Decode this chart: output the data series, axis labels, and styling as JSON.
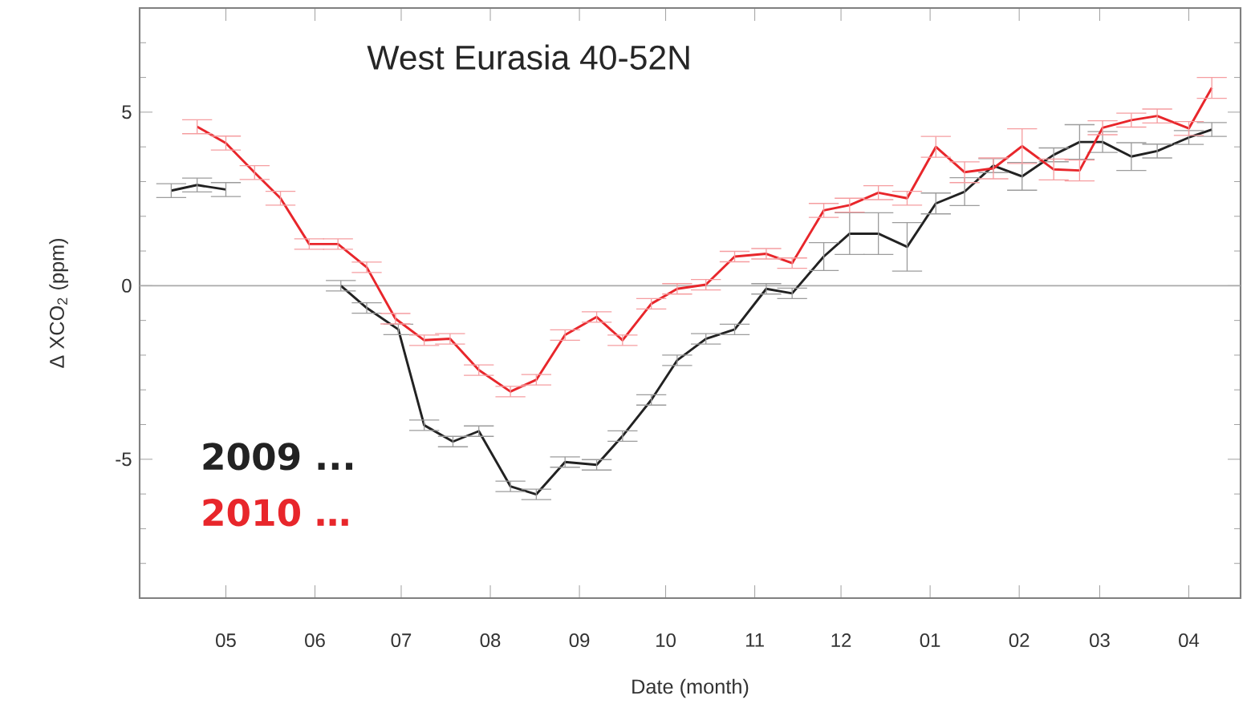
{
  "chart_data": {
    "type": "line",
    "title": "West Eurasia 40-52N",
    "xlabel": "Date (month)",
    "ylabel": "Δ XCO$_{2}$ (ppm)",
    "xlim": [
      "2009-04-01",
      "2010-04-19"
    ],
    "ylim": [
      -9,
      8
    ],
    "xticks": [
      {
        "value": "2009-05-01",
        "label": "05"
      },
      {
        "value": "2009-06-01",
        "label": "06"
      },
      {
        "value": "2009-07-01",
        "label": "07"
      },
      {
        "value": "2009-08-01",
        "label": "08"
      },
      {
        "value": "2009-09-01",
        "label": "09"
      },
      {
        "value": "2009-10-01",
        "label": "10"
      },
      {
        "value": "2009-11-01",
        "label": "11"
      },
      {
        "value": "2009-12-01",
        "label": "12"
      },
      {
        "value": "2010-01-01",
        "label": "01"
      },
      {
        "value": "2010-02-01",
        "label": "02"
      },
      {
        "value": "2010-03-01",
        "label": "03"
      },
      {
        "value": "2010-04-01",
        "label": "04"
      }
    ],
    "yticks": [
      {
        "value": -8,
        "label": null
      },
      {
        "value": -7,
        "label": null
      },
      {
        "value": -6,
        "label": null
      },
      -5,
      {
        "value": -4,
        "label": null
      },
      {
        "value": -3,
        "label": null
      },
      {
        "value": -2,
        "label": null
      },
      {
        "value": -1,
        "label": null
      },
      0,
      {
        "value": 1,
        "label": null
      },
      {
        "value": 2,
        "label": null
      },
      {
        "value": 3,
        "label": null
      },
      {
        "value": 4,
        "label": null
      },
      5,
      {
        "value": 6,
        "label": null
      },
      {
        "value": 7,
        "label": null
      }
    ],
    "ref_lines": [
      {
        "axis": "y",
        "value": 0,
        "color": "#aaaaaa"
      }
    ],
    "legend": "bottom left",
    "grid": false,
    "marker": "none",
    "line_style": "solid",
    "series": [
      {
        "name": "2009 ...",
        "color": "#222222",
        "x": [
          "2009-04-12",
          "2009-04-21",
          "2009-05-01",
          "2009-05-20",
          "2009-06-10",
          "2009-06-19",
          "2009-06-30",
          "2009-07-09",
          "2009-07-19",
          "2009-07-28",
          "2009-08-08",
          "2009-08-17",
          "2009-08-27",
          "2009-09-07",
          "2009-09-16",
          "2009-09-26",
          "2009-10-05",
          "2009-10-15",
          "2009-10-25",
          "2009-11-05",
          "2009-11-14",
          "2009-11-25",
          "2009-12-04",
          "2009-12-14",
          "2009-12-24",
          "2010-01-03",
          "2010-01-13",
          "2010-01-23",
          "2010-02-02",
          "2010-02-13",
          "2010-02-22",
          "2010-03-02",
          "2010-03-12",
          "2010-03-21",
          "2010-04-01",
          "2010-04-09"
        ],
        "values": [
          2.74,
          2.9,
          2.77,
          null,
          0.0,
          -0.64,
          -1.26,
          -4.02,
          -4.49,
          -4.19,
          -5.78,
          -6.01,
          -5.08,
          -5.16,
          -4.33,
          -3.29,
          -2.15,
          -1.53,
          -1.26,
          -0.09,
          -0.22,
          0.84,
          1.5,
          1.5,
          1.12,
          2.37,
          2.71,
          3.46,
          3.15,
          3.77,
          4.14,
          4.14,
          3.72,
          3.88,
          4.27,
          4.5
        ],
        "errors": [
          0.2,
          0.2,
          0.2,
          null,
          0.15,
          0.15,
          0.15,
          0.15,
          0.15,
          0.15,
          0.15,
          0.15,
          0.15,
          0.15,
          0.15,
          0.15,
          0.15,
          0.15,
          0.15,
          0.15,
          0.15,
          0.4,
          0.6,
          0.6,
          0.7,
          0.3,
          0.4,
          0.2,
          0.4,
          0.2,
          0.5,
          0.3,
          0.4,
          0.2,
          0.2,
          0.2
        ]
      },
      {
        "name": "2010 …",
        "color": "#e8262b",
        "x": [
          "2009-04-21",
          "2009-05-01",
          "2009-05-11",
          "2009-05-20",
          "2009-05-30",
          "2009-06-09",
          "2009-06-19",
          "2009-06-29",
          "2009-07-09",
          "2009-07-18",
          "2009-07-28",
          "2009-08-08",
          "2009-08-17",
          "2009-08-27",
          "2009-09-07",
          "2009-09-16",
          "2009-09-26",
          "2009-10-05",
          "2009-10-15",
          "2009-10-25",
          "2009-11-05",
          "2009-11-14",
          "2009-11-25",
          "2009-12-04",
          "2009-12-14",
          "2009-12-24",
          "2010-01-03",
          "2010-01-13",
          "2010-01-23",
          "2010-02-02",
          "2010-02-13",
          "2010-02-22",
          "2010-03-02",
          "2010-03-12",
          "2010-03-21",
          "2010-04-01",
          "2010-04-09"
        ],
        "values": [
          4.58,
          4.11,
          3.26,
          2.52,
          1.2,
          1.2,
          0.53,
          -0.95,
          -1.57,
          -1.53,
          -2.43,
          -3.05,
          -2.71,
          -1.42,
          -0.9,
          -1.57,
          -0.52,
          -0.09,
          0.03,
          0.84,
          0.92,
          0.65,
          2.17,
          2.32,
          2.68,
          2.52,
          4.0,
          3.27,
          3.38,
          4.02,
          3.35,
          3.32,
          4.55,
          4.77,
          4.89,
          4.53,
          5.7
        ],
        "errors": [
          0.2,
          0.2,
          0.2,
          0.2,
          0.15,
          0.15,
          0.15,
          0.15,
          0.15,
          0.15,
          0.15,
          0.15,
          0.15,
          0.15,
          0.15,
          0.15,
          0.15,
          0.15,
          0.15,
          0.15,
          0.15,
          0.15,
          0.2,
          0.2,
          0.2,
          0.2,
          0.3,
          0.3,
          0.3,
          0.5,
          0.3,
          0.3,
          0.2,
          0.2,
          0.2,
          0.2,
          0.3
        ]
      }
    ]
  }
}
